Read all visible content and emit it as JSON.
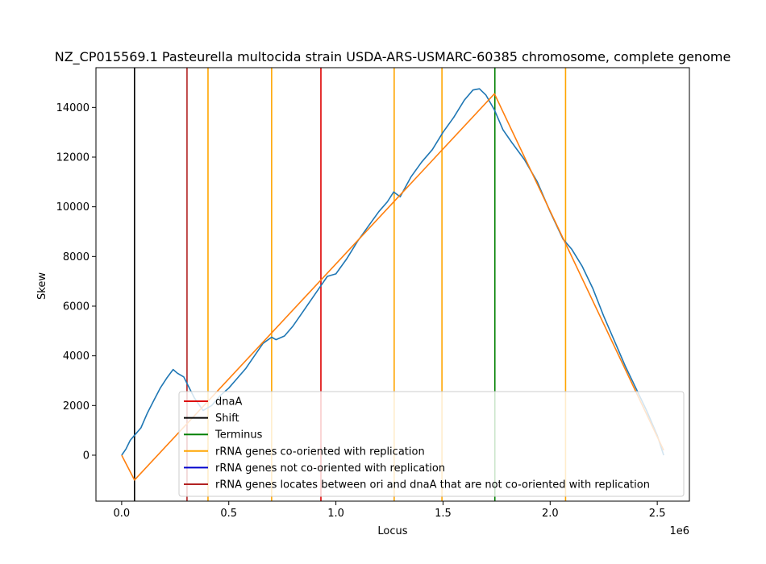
{
  "chart_data": {
    "type": "line",
    "title": "NZ_CP015569.1 Pasteurella multocida strain USDA-ARS-USMARC-60385 chromosome, complete genome",
    "xlabel": "Locus",
    "ylabel": "Skew",
    "x_offset_label": "1e6",
    "xlim": [
      -120000,
      2650000
    ],
    "ylim": [
      -1850000,
      15600
    ],
    "ylim_note": "",
    "xticks": [
      0,
      500000,
      1000000,
      1500000,
      2000000,
      2500000
    ],
    "xtick_labels": [
      "0.0",
      "0.5",
      "1.0",
      "1.5",
      "2.0",
      "2.5"
    ],
    "yticks": [
      0,
      2000,
      4000,
      6000,
      8000,
      10000,
      12000,
      14000
    ],
    "ytick_labels": [
      "0",
      "2000",
      "4000",
      "6000",
      "8000",
      "10000",
      "12000",
      "14000"
    ],
    "series": [
      {
        "color": "#1f77b4",
        "x": [
          0,
          20000,
          40000,
          60000,
          90000,
          120000,
          150000,
          180000,
          210000,
          240000,
          260000,
          290000,
          310000,
          340000,
          380000,
          420000,
          460000,
          500000,
          540000,
          580000,
          620000,
          660000,
          700000,
          720000,
          760000,
          800000,
          840000,
          880000,
          920000,
          960000,
          1000000,
          1050000,
          1100000,
          1150000,
          1200000,
          1240000,
          1270000,
          1300000,
          1350000,
          1400000,
          1450000,
          1500000,
          1550000,
          1600000,
          1640000,
          1670000,
          1700000,
          1740000,
          1780000,
          1820000,
          1880000,
          1940000,
          2000000,
          2060000,
          2100000,
          2150000,
          2200000,
          2250000,
          2300000,
          2350000,
          2400000,
          2450000,
          2500000,
          2530000
        ],
        "y": [
          0,
          250,
          600,
          800,
          1100,
          1700,
          2200,
          2700,
          3100,
          3450,
          3300,
          3150,
          2800,
          2300,
          1800,
          2000,
          2400,
          2700,
          3100,
          3500,
          4000,
          4500,
          4750,
          4650,
          4800,
          5200,
          5700,
          6200,
          6700,
          7200,
          7300,
          7900,
          8600,
          9200,
          9800,
          10200,
          10600,
          10400,
          11200,
          11800,
          12300,
          13000,
          13600,
          14300,
          14700,
          14750,
          14500,
          13900,
          13100,
          12600,
          11900,
          11000,
          9800,
          8700,
          8300,
          7600,
          6700,
          5600,
          4600,
          3600,
          2700,
          1800,
          800,
          0
        ]
      },
      {
        "color": "#ff7f0e",
        "x": [
          0,
          60000,
          1740000,
          2530000
        ],
        "y": [
          0,
          -1000,
          14550,
          200
        ]
      }
    ],
    "vlines": [
      {
        "x": 60000,
        "color": "#000000"
      },
      {
        "x": 305000,
        "color": "#b22222"
      },
      {
        "x": 403000,
        "color": "#ffa500"
      },
      {
        "x": 700000,
        "color": "#ffa500"
      },
      {
        "x": 930000,
        "color": "#dd0000"
      },
      {
        "x": 1272000,
        "color": "#ffa500"
      },
      {
        "x": 1495000,
        "color": "#ffa500"
      },
      {
        "x": 1742000,
        "color": "#008000"
      },
      {
        "x": 2072000,
        "color": "#ffa500"
      }
    ],
    "legend_position": "lower-right",
    "legend": [
      {
        "label": "dnaA",
        "color": "#dd0000"
      },
      {
        "label": "Shift",
        "color": "#000000"
      },
      {
        "label": "Terminus",
        "color": "#008000"
      },
      {
        "label": "rRNA genes co-oriented with replication",
        "color": "#ffa500"
      },
      {
        "label": "rRNA genes not co-oriented with replication",
        "color": "#0000cc"
      },
      {
        "label": "rRNA genes locates between ori and dnaA that are not co-oriented with replication",
        "color": "#b22222"
      }
    ]
  }
}
